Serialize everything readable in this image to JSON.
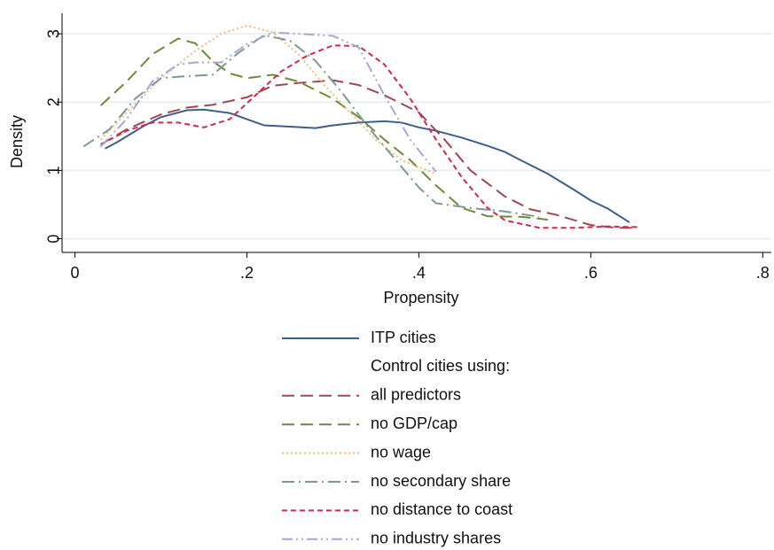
{
  "chart_data": {
    "type": "line",
    "xlabel": "Propensity",
    "ylabel": "Density",
    "xlim": [
      -0.015,
      0.81
    ],
    "ylim": [
      -0.2,
      3.3
    ],
    "xticks": [
      0,
      {
        "value": 0.2,
        "label": ".2"
      },
      {
        "value": 0.4,
        "label": ".4"
      },
      {
        "value": 0.6,
        "label": ".6"
      },
      {
        "value": 0.8,
        "label": ".8"
      }
    ],
    "yticks": [
      0,
      1,
      2,
      3
    ],
    "grid": true,
    "legend_position": "bottom",
    "legend_subtitle": "Control cities using:",
    "series": [
      {
        "name": "ITP cities",
        "color": "#3e5f8a",
        "style": "solid",
        "x": [
          0.035,
          0.05,
          0.08,
          0.1,
          0.13,
          0.15,
          0.18,
          0.2,
          0.22,
          0.25,
          0.28,
          0.3,
          0.33,
          0.36,
          0.38,
          0.4,
          0.42,
          0.45,
          0.48,
          0.5,
          0.52,
          0.55,
          0.58,
          0.6,
          0.62,
          0.645
        ],
        "values": [
          1.32,
          1.42,
          1.65,
          1.78,
          1.88,
          1.89,
          1.84,
          1.75,
          1.66,
          1.64,
          1.62,
          1.66,
          1.7,
          1.72,
          1.7,
          1.63,
          1.58,
          1.48,
          1.36,
          1.27,
          1.14,
          0.95,
          0.72,
          0.56,
          0.44,
          0.24
        ]
      },
      {
        "name": "all predictors",
        "color": "#a0484f",
        "style": "dashed",
        "x": [
          0.03,
          0.06,
          0.1,
          0.13,
          0.16,
          0.2,
          0.23,
          0.26,
          0.3,
          0.33,
          0.36,
          0.4,
          0.43,
          0.46,
          0.5,
          0.53,
          0.56,
          0.6,
          0.63,
          0.655
        ],
        "values": [
          1.38,
          1.6,
          1.82,
          1.92,
          1.96,
          2.07,
          2.24,
          2.28,
          2.32,
          2.25,
          2.1,
          1.85,
          1.45,
          1.0,
          0.62,
          0.43,
          0.35,
          0.2,
          0.16,
          0.16
        ]
      },
      {
        "name": "no GDP/cap",
        "color": "#6f8a3b",
        "style": "dashed",
        "x": [
          0.03,
          0.06,
          0.09,
          0.12,
          0.14,
          0.16,
          0.18,
          0.2,
          0.23,
          0.26,
          0.3,
          0.33,
          0.36,
          0.39,
          0.42,
          0.45,
          0.48,
          0.52,
          0.55
        ],
        "values": [
          1.95,
          2.3,
          2.7,
          2.93,
          2.86,
          2.6,
          2.42,
          2.35,
          2.4,
          2.3,
          2.05,
          1.78,
          1.45,
          1.15,
          0.78,
          0.45,
          0.33,
          0.32,
          0.28
        ]
      },
      {
        "name": "no wage",
        "color": "#f5b97b",
        "style": "dotted",
        "x": [
          0.03,
          0.06,
          0.1,
          0.14,
          0.17,
          0.2,
          0.23,
          0.26,
          0.29,
          0.32,
          0.35,
          0.38,
          0.42
        ],
        "values": [
          1.45,
          1.85,
          2.35,
          2.75,
          3.0,
          3.12,
          3.02,
          2.7,
          2.25,
          1.85,
          1.45,
          1.15,
          0.95
        ]
      },
      {
        "name": "no secondary share",
        "color": "#7a9a8c",
        "style": "dashdot",
        "x": [
          0.01,
          0.04,
          0.07,
          0.1,
          0.13,
          0.16,
          0.19,
          0.22,
          0.25,
          0.28,
          0.31,
          0.34,
          0.37,
          0.4,
          0.42,
          0.46,
          0.5,
          0.54
        ],
        "values": [
          1.35,
          1.6,
          2.05,
          2.35,
          2.38,
          2.4,
          2.72,
          2.98,
          2.9,
          2.6,
          2.15,
          1.65,
          1.2,
          0.75,
          0.52,
          0.45,
          0.4,
          0.32
        ]
      },
      {
        "name": "no distance to coast",
        "color": "#d1294e",
        "style": "shortdash",
        "x": [
          0.03,
          0.06,
          0.09,
          0.12,
          0.15,
          0.18,
          0.21,
          0.24,
          0.27,
          0.3,
          0.33,
          0.36,
          0.39,
          0.42,
          0.45,
          0.48,
          0.5,
          0.54,
          0.58,
          0.62,
          0.655
        ],
        "values": [
          1.38,
          1.58,
          1.7,
          1.7,
          1.63,
          1.75,
          2.1,
          2.45,
          2.68,
          2.83,
          2.82,
          2.55,
          2.05,
          1.45,
          0.9,
          0.45,
          0.27,
          0.16,
          0.16,
          0.18,
          0.17
        ]
      },
      {
        "name": "no industry shares",
        "color": "#a6a6d8",
        "style": "dashdotdot",
        "x": [
          0.03,
          0.06,
          0.09,
          0.12,
          0.14,
          0.17,
          0.2,
          0.23,
          0.26,
          0.3,
          0.33,
          0.36,
          0.39,
          0.42
        ],
        "values": [
          1.35,
          1.75,
          2.3,
          2.55,
          2.58,
          2.58,
          2.85,
          3.02,
          3.0,
          2.97,
          2.8,
          2.1,
          1.45,
          0.98
        ]
      }
    ]
  }
}
